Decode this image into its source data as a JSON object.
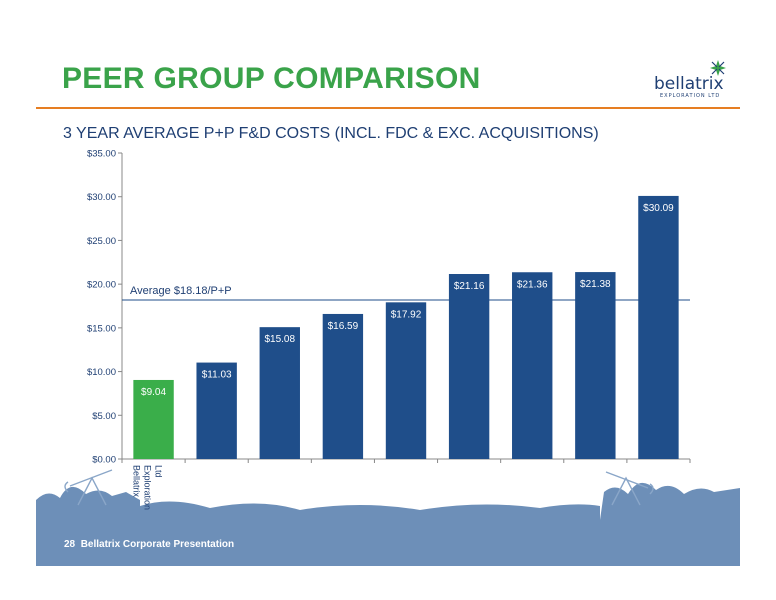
{
  "header": {
    "title": "PEER GROUP COMPARISON",
    "logo_text": "bellatrix",
    "logo_subtext": "EXPLORATION LTD"
  },
  "subtitle": "3 YEAR AVERAGE P+P F&D COSTS (INCL. FDC & EXC. ACQUISITIONS)",
  "footer": {
    "page_number": "28",
    "presentation": "Bellatrix Corporate Presentation"
  },
  "colors": {
    "title": "#3aa34a",
    "rule": "#e67e22",
    "bar_primary": "#1f4e8a",
    "bar_highlight": "#3aae4a",
    "footer_band": "#6d8fb8"
  },
  "chart_data": {
    "type": "bar",
    "categories": [
      "Bellatrix Exploration Ltd",
      "",
      "",
      "",
      "",
      "",
      "",
      "",
      ""
    ],
    "values": [
      9.04,
      11.03,
      15.08,
      16.59,
      17.92,
      21.16,
      21.36,
      21.38,
      30.09
    ],
    "data_labels": [
      "$9.04",
      "$11.03",
      "$15.08",
      "$16.59",
      "$17.92",
      "$21.16",
      "$21.36",
      "$21.38",
      "$30.09"
    ],
    "highlight_index": 0,
    "ylim": [
      0,
      35
    ],
    "yticks": [
      0,
      5,
      10,
      15,
      20,
      25,
      30,
      35
    ],
    "ytick_labels": [
      "$0.00",
      "$5.00",
      "$10.00",
      "$15.00",
      "$20.00",
      "$25.00",
      "$30.00",
      "$35.00"
    ],
    "average_line": {
      "value": 18.18,
      "label": "Average $18.18/P+P"
    },
    "grid": false,
    "legend": "none"
  }
}
